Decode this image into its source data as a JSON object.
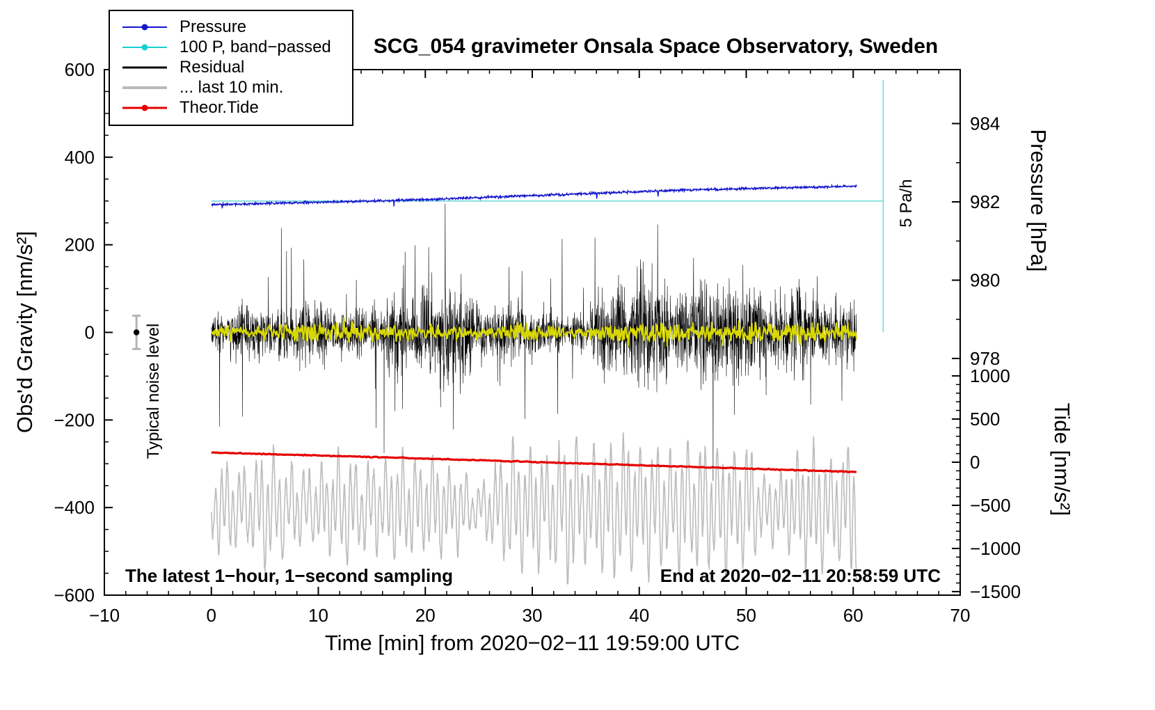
{
  "title": "SCG_054 gravimeter Onsala Space Observatory, Sweden",
  "annotations": {
    "noise_level": "Typical noise level",
    "rate_ref": "5 Pa/h",
    "sampling_note": "The latest 1−hour, 1−second sampling",
    "end_time": "End at 2020−02−11 20:58:59 UTC"
  },
  "legend": {
    "items": [
      {
        "id": "pressure",
        "label": "Pressure",
        "color": "#1414cd",
        "line_width": 2,
        "dot": true
      },
      {
        "id": "bandpassed",
        "label": "100 P, band−passed",
        "color": "#17cfcf",
        "line_width": 2,
        "dot": true
      },
      {
        "id": "residual",
        "label": "Residual",
        "color": "#000000",
        "line_width": 3,
        "dot": false
      },
      {
        "id": "residual-last10",
        "label": "... last 10 min.",
        "color": "#b9b9b9",
        "line_width": 4,
        "dot": false
      },
      {
        "id": "theor-tide",
        "label": "Theor.Tide",
        "color": "#e60000",
        "line_width": 3,
        "dot": true
      }
    ]
  },
  "chart_data": {
    "type": "line",
    "title": "SCG_054 gravimeter Onsala Space Observatory, Sweden",
    "axes": {
      "x": {
        "label": "Time [min] from 2020−02−11 19:59:00 UTC",
        "min": -10,
        "max": 70,
        "major_ticks": [
          -10,
          0,
          10,
          20,
          30,
          40,
          50,
          60,
          70
        ],
        "tick_labels": [
          "−10",
          "0",
          "10",
          "20",
          "30",
          "40",
          "50",
          "60",
          "70"
        ],
        "minor_step": 2,
        "major_step": 10
      },
      "gravity": {
        "label": "Obs'd Gravity [nm/s²]",
        "min": -600,
        "max": 600,
        "major_ticks": [
          -600,
          -400,
          -200,
          0,
          200,
          400,
          600
        ],
        "tick_labels": [
          "−600",
          "−400",
          "−200",
          "0",
          "200",
          "400",
          "600"
        ],
        "minor_step": 50,
        "major_step": 200
      },
      "pressure": {
        "label": "Pressure [hPa]",
        "major_ticks": [
          978,
          980,
          982,
          984
        ],
        "tick_labels": [
          "978",
          "980",
          "982",
          "984"
        ],
        "minor_ticks": [
          979,
          981,
          983
        ],
        "anchor_value": 982,
        "anchor_gravity": 298,
        "gravity_per_unit": 89.4
      },
      "tide": {
        "label": "Tide [nm/s²]",
        "major_ticks": [
          1000,
          500,
          0,
          -500,
          -1000,
          -1500
        ],
        "tick_labels": [
          "1000",
          "500",
          "0",
          "−500",
          "−1000",
          "−1500"
        ],
        "minor_from": 1000,
        "minor_to": -1500,
        "minor_step": 100,
        "major_step": 500,
        "anchor_value": 0,
        "anchor_gravity": -296.4,
        "gravity_per_unit": 0.197
      }
    },
    "series": [
      {
        "id": "bandpassed-ref",
        "name": "100 P, band−passed",
        "axis": "gravity",
        "kind": "hline",
        "color": "#5fd3d3",
        "width": 1.3,
        "value": 300,
        "x_start": 0,
        "x_end": 62.8
      },
      {
        "id": "rate-ref",
        "name": "5 Pa/h reference",
        "axis": "gravity",
        "kind": "vline",
        "color": "#5fd3d3",
        "width": 1.3,
        "x": 62.8,
        "g_start": 0,
        "g_end": 577
      },
      {
        "id": "residual-last10",
        "name": "... last 10 min.",
        "axis": "gravity",
        "kind": "oscillation",
        "color": "#bcbcbc",
        "width": 1.6,
        "seed": 13,
        "n": 2600,
        "center": -400,
        "amp_base": 92,
        "period_min": 0.55,
        "x_start": 0,
        "x_end": 60.3
      },
      {
        "id": "theor-tide",
        "name": "Theor.Tide",
        "axis": "tide",
        "kind": "sampled",
        "color": "#e60000",
        "width": 3.2,
        "seed": 5,
        "n": 420,
        "noise": 10,
        "x": [
          0,
          10,
          20,
          30,
          40,
          50,
          60.3
        ],
        "values": [
          112,
          78,
          42,
          4,
          -36,
          -74,
          -113
        ]
      },
      {
        "id": "residual",
        "name": "Residual",
        "axis": "gravity",
        "kind": "noise",
        "color": "#000000",
        "width": 0.6,
        "seed": 42,
        "n": 3200,
        "center": 0,
        "base_amp": 110,
        "spike_amp": 215,
        "spike_chance": 0.02,
        "x_start": 0,
        "x_end": 60.3
      },
      {
        "id": "bandpassed-trace",
        "name": "100 P, band−passed (trace)",
        "axis": "gravity",
        "kind": "noise",
        "color": "#d8d800",
        "width": 2.1,
        "seed": 7,
        "n": 900,
        "center": 0,
        "base_amp": 22,
        "spike_amp": 0,
        "spike_chance": 0,
        "x_start": 0,
        "x_end": 60.3
      },
      {
        "id": "pressure",
        "name": "Pressure",
        "axis": "pressure",
        "kind": "sampled",
        "color": "#1414cd",
        "width": 1.4,
        "seed": 11,
        "n": 1600,
        "noise": 0.05,
        "dip_chance": 0.002,
        "dip_depth": 0.12,
        "x": [
          0,
          5,
          10,
          15,
          20,
          25,
          30,
          35,
          40,
          45,
          50,
          55,
          60.3
        ],
        "values": [
          981.93,
          981.96,
          981.99,
          982.02,
          982.06,
          982.11,
          982.16,
          982.21,
          982.26,
          982.31,
          982.34,
          982.37,
          982.4
        ]
      }
    ],
    "noise_marker": {
      "x": -7,
      "gravity": 0,
      "error": 38,
      "bar_color": "#b3b3b3",
      "dot_color": "#000000"
    }
  }
}
